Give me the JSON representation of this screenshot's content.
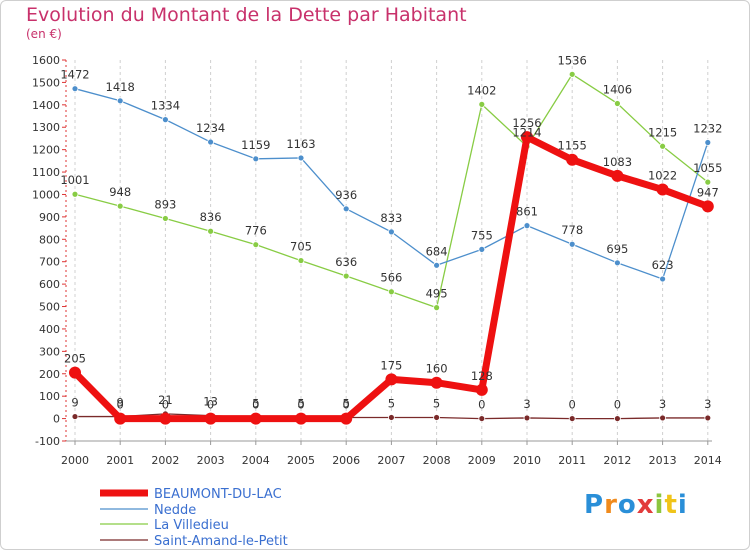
{
  "title": "Evolution du Montant de la Dette par Habitant",
  "subtitle": "(en €)",
  "logo": {
    "text": "Proxiti",
    "letter_colors": [
      "#2a8fd8",
      "#f08a1c",
      "#2a8fd8",
      "#e23c3c",
      "#8cc63f",
      "#f0c419",
      "#2a8fd8"
    ]
  },
  "chart_data": {
    "type": "line",
    "title": "Evolution du Montant de la Dette par Habitant",
    "ylabel": "(en €)",
    "x": [
      "2000",
      "2001",
      "2002",
      "2003",
      "2004",
      "2005",
      "2006",
      "2007",
      "2008",
      "2009",
      "2010",
      "2011",
      "2012",
      "2013",
      "2014"
    ],
    "ylim": [
      -100,
      1600
    ],
    "yticks": [
      -100,
      0,
      100,
      200,
      300,
      400,
      500,
      600,
      700,
      800,
      900,
      1000,
      1100,
      1200,
      1300,
      1400,
      1500,
      1600
    ],
    "grid": "vertical dashed",
    "legend": "bottom-left",
    "series": [
      {
        "name": "BEAUMONT-DU-LAC",
        "color": "#ee1111",
        "values": [
          205,
          0,
          0,
          0,
          0,
          0,
          0,
          175,
          160,
          128,
          1256,
          1155,
          1083,
          1022,
          947
        ],
        "labels": [
          "205",
          "0",
          "0",
          "0",
          "0",
          "0",
          "0",
          "175",
          "160",
          "128",
          "1256",
          "1155",
          "1083",
          "1022",
          "947"
        ]
      },
      {
        "name": "Nedde",
        "color": "#4d8fcc",
        "values": [
          1472,
          1418,
          1334,
          1234,
          1159,
          1163,
          936,
          833,
          684,
          755,
          861,
          778,
          695,
          623,
          1232
        ],
        "labels": [
          "1472",
          "1418",
          "1334",
          "1234",
          "1159",
          "1163",
          "936",
          "833",
          "684",
          "755",
          "861",
          "778",
          "695",
          "623",
          "1232"
        ]
      },
      {
        "name": "La Villedieu",
        "color": "#88cc44",
        "values": [
          1001,
          948,
          893,
          836,
          776,
          705,
          636,
          566,
          495,
          1402,
          1214,
          1536,
          1406,
          1215,
          1055
        ],
        "labels": [
          "1001",
          "948",
          "893",
          "836",
          "776",
          "705",
          "636",
          "566",
          "495",
          "1402",
          "1214",
          "1536",
          "1406",
          "1215",
          "1055"
        ]
      },
      {
        "name": "Saint-Amand-le-Petit",
        "color": "#7a2a2a",
        "values": [
          9,
          9,
          21,
          13,
          5,
          5,
          5,
          5,
          5,
          0,
          3,
          0,
          0,
          3,
          3
        ],
        "labels": [
          "9",
          "9",
          "21",
          "13",
          "5",
          "5",
          "5",
          "5",
          "5",
          "0",
          "3",
          "0",
          "0",
          "3",
          "3"
        ]
      }
    ]
  }
}
